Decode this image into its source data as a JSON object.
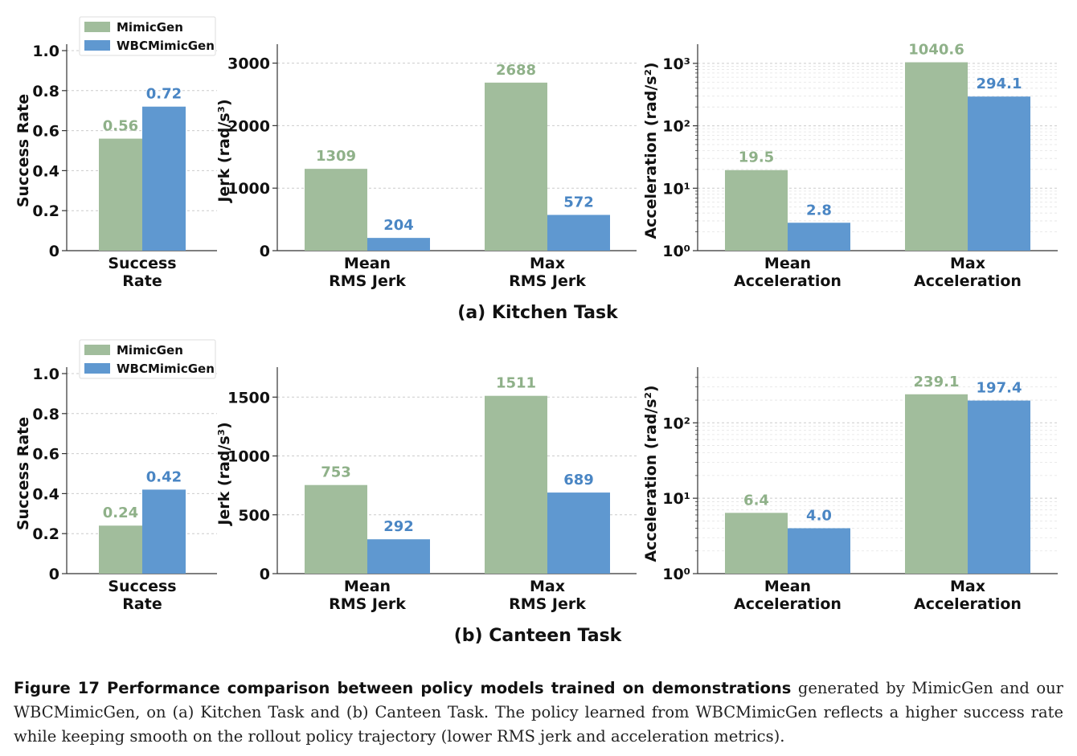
{
  "colors": {
    "mimicgen": "#a1bd9c",
    "wbcmimicgen": "#5f98d0",
    "mimicgen_label": "#8fb189",
    "wbcmimicgen_label": "#4a86c4",
    "grid": "#cccccc"
  },
  "legend": {
    "mimicgen": "MimicGen",
    "wbcmimicgen": "WBCMimicGen"
  },
  "panels": [
    {
      "title": "(a)  Kitchen Task"
    },
    {
      "title": "(b)  Canteen Task"
    }
  ],
  "chart_data": [
    {
      "type": "bar",
      "panel": 0,
      "ylabel": "Success Rate",
      "scale": "linear",
      "ylim": [
        0,
        1.0
      ],
      "yticks": [
        "0",
        "0.2",
        "0.4",
        "0.6",
        "0.8",
        "1.0"
      ],
      "ytick_values": [
        0,
        0.2,
        0.4,
        0.6,
        0.8,
        1.0
      ],
      "categories": [
        [
          "Success",
          "Rate"
        ]
      ],
      "series": [
        {
          "name": "MimicGen",
          "values": [
            0.56
          ],
          "labels": [
            "0.56"
          ]
        },
        {
          "name": "WBCMimicGen",
          "values": [
            0.72
          ],
          "labels": [
            "0.72"
          ]
        }
      ],
      "legend": "top-left",
      "grid": true
    },
    {
      "type": "bar",
      "panel": 0,
      "ylabel": "Jerk (rad/s³)",
      "scale": "linear",
      "ylim": [
        0,
        3200
      ],
      "yticks": [
        "0",
        "1000",
        "2000",
        "3000"
      ],
      "ytick_values": [
        0,
        1000,
        2000,
        3000
      ],
      "categories": [
        [
          "Mean",
          "RMS Jerk"
        ],
        [
          "Max",
          "RMS Jerk"
        ]
      ],
      "series": [
        {
          "name": "MimicGen",
          "values": [
            1309,
            2688
          ],
          "labels": [
            "1309",
            "2688"
          ]
        },
        {
          "name": "WBCMimicGen",
          "values": [
            204,
            572
          ],
          "labels": [
            "204",
            "572"
          ]
        }
      ],
      "grid": true
    },
    {
      "type": "bar",
      "panel": 0,
      "ylabel": "Acceleration (rad/s²)",
      "scale": "log",
      "ylim": [
        1,
        1600
      ],
      "yticks": [
        "10⁰",
        "10¹",
        "10²",
        "10³"
      ],
      "ytick_values": [
        1,
        10,
        100,
        1000
      ],
      "categories": [
        [
          "Mean",
          "Acceleration"
        ],
        [
          "Max",
          "Acceleration"
        ]
      ],
      "series": [
        {
          "name": "MimicGen",
          "values": [
            19.5,
            1040.6
          ],
          "labels": [
            "19.5",
            "1040.6"
          ]
        },
        {
          "name": "WBCMimicGen",
          "values": [
            2.8,
            294.1
          ],
          "labels": [
            "2.8",
            "294.1"
          ]
        }
      ],
      "grid": true
    },
    {
      "type": "bar",
      "panel": 1,
      "ylabel": "Success Rate",
      "scale": "linear",
      "ylim": [
        0,
        1.0
      ],
      "yticks": [
        "0",
        "0.2",
        "0.4",
        "0.6",
        "0.8",
        "1.0"
      ],
      "ytick_values": [
        0,
        0.2,
        0.4,
        0.6,
        0.8,
        1.0
      ],
      "categories": [
        [
          "Success",
          "Rate"
        ]
      ],
      "series": [
        {
          "name": "MimicGen",
          "values": [
            0.24
          ],
          "labels": [
            "0.24"
          ]
        },
        {
          "name": "WBCMimicGen",
          "values": [
            0.42
          ],
          "labels": [
            "0.42"
          ]
        }
      ],
      "legend": "top-left",
      "grid": true
    },
    {
      "type": "bar",
      "panel": 1,
      "ylabel": "Jerk (rad/s³)",
      "scale": "linear",
      "ylim": [
        0,
        1700
      ],
      "yticks": [
        "0",
        "500",
        "1000",
        "1500"
      ],
      "ytick_values": [
        0,
        500,
        1000,
        1500
      ],
      "categories": [
        [
          "Mean",
          "RMS Jerk"
        ],
        [
          "Max",
          "RMS Jerk"
        ]
      ],
      "series": [
        {
          "name": "MimicGen",
          "values": [
            753,
            1511
          ],
          "labels": [
            "753",
            "1511"
          ]
        },
        {
          "name": "WBCMimicGen",
          "values": [
            292,
            689
          ],
          "labels": [
            "292",
            "689"
          ]
        }
      ],
      "grid": true
    },
    {
      "type": "bar",
      "panel": 1,
      "ylabel": "Acceleration (rad/s²)",
      "scale": "log",
      "ylim": [
        1,
        450
      ],
      "yticks": [
        "10⁰",
        "10¹",
        "10²"
      ],
      "ytick_values": [
        1,
        10,
        100
      ],
      "categories": [
        [
          "Mean",
          "Acceleration"
        ],
        [
          "Max",
          "Acceleration"
        ]
      ],
      "series": [
        {
          "name": "MimicGen",
          "values": [
            6.4,
            239.1
          ],
          "labels": [
            "6.4",
            "239.1"
          ]
        },
        {
          "name": "WBCMimicGen",
          "values": [
            4.0,
            197.4
          ],
          "labels": [
            "4.0",
            "197.4"
          ]
        }
      ],
      "grid": true
    }
  ],
  "caption": {
    "bold": "Figure 17  Performance comparison between policy models trained on demonstrations",
    "text": " generated by MimicGen and our WBCMimicGen, on (a) Kitchen Task and (b) Canteen Task. The policy learned from WBCMimicGen reflects a higher success rate while keeping smooth on the rollout policy trajectory (lower RMS jerk and acceleration metrics)."
  }
}
